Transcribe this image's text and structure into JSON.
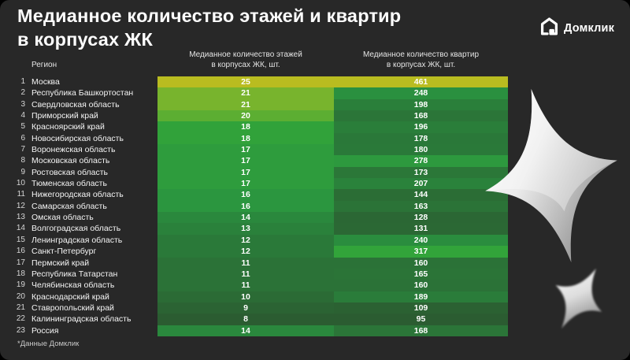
{
  "header": {
    "title_line1": "Медианное количество этажей и квартир",
    "title_line2": "в корпусах ЖК",
    "logo_text": "Домклик"
  },
  "table": {
    "region_header": "Регион",
    "col1_header_line1": "Медианное количество этажей",
    "col1_header_line2": "в корпусах ЖК, шт.",
    "col2_header_line1": "Медианное количество квартир",
    "col2_header_line2": "в корпусах ЖК, шт."
  },
  "footer": {
    "source_note": "*Данные Домклик"
  },
  "colors": {
    "background": "#282828",
    "cell_text": "#ffffff",
    "scale_stops": [
      [
        0,
        "#2b5c31"
      ],
      [
        0.45,
        "#2a9440"
      ],
      [
        0.62,
        "#33a539"
      ],
      [
        0.78,
        "#7fb62c"
      ],
      [
        1,
        "#b9bc20"
      ]
    ]
  },
  "chart_data": {
    "type": "heatmap",
    "title": "Медианное количество этажей и квартир в корпусах ЖК",
    "columns": [
      "Медианное количество этажей в корпусах ЖК, шт.",
      "Медианное количество квартир в корпусах ЖК, шт."
    ],
    "legend_position": "none",
    "grid": false,
    "floors_range": [
      8,
      25
    ],
    "apartments_range": [
      95,
      461
    ],
    "rows": [
      {
        "rank": 1,
        "region": "Москва",
        "floors": 25,
        "apartments": 461
      },
      {
        "rank": 2,
        "region": "Республика Башкортостан",
        "floors": 21,
        "apartments": 248
      },
      {
        "rank": 3,
        "region": "Свердловская область",
        "floors": 21,
        "apartments": 198
      },
      {
        "rank": 4,
        "region": "Приморский край",
        "floors": 20,
        "apartments": 168
      },
      {
        "rank": 5,
        "region": "Красноярский край",
        "floors": 18,
        "apartments": 196
      },
      {
        "rank": 6,
        "region": "Новосибирская область",
        "floors": 18,
        "apartments": 178
      },
      {
        "rank": 7,
        "region": "Воронежская область",
        "floors": 17,
        "apartments": 180
      },
      {
        "rank": 8,
        "region": "Московская область",
        "floors": 17,
        "apartments": 278
      },
      {
        "rank": 9,
        "region": "Ростовская область",
        "floors": 17,
        "apartments": 173
      },
      {
        "rank": 10,
        "region": "Тюменская область",
        "floors": 17,
        "apartments": 207
      },
      {
        "rank": 11,
        "region": "Нижегородская область",
        "floors": 16,
        "apartments": 144
      },
      {
        "rank": 12,
        "region": "Самарская область",
        "floors": 16,
        "apartments": 163
      },
      {
        "rank": 13,
        "region": "Омская область",
        "floors": 14,
        "apartments": 128
      },
      {
        "rank": 14,
        "region": "Волгоградская область",
        "floors": 13,
        "apartments": 131
      },
      {
        "rank": 15,
        "region": "Ленинградская область",
        "floors": 12,
        "apartments": 240
      },
      {
        "rank": 16,
        "region": "Санкт-Петербург",
        "floors": 12,
        "apartments": 317
      },
      {
        "rank": 17,
        "region": "Пермский край",
        "floors": 11,
        "apartments": 160
      },
      {
        "rank": 18,
        "region": "Республика Татарстан",
        "floors": 11,
        "apartments": 165
      },
      {
        "rank": 19,
        "region": "Челябинская область",
        "floors": 11,
        "apartments": 160
      },
      {
        "rank": 20,
        "region": "Краснодарский край",
        "floors": 10,
        "apartments": 189
      },
      {
        "rank": 21,
        "region": "Ставропольский край",
        "floors": 9,
        "apartments": 109
      },
      {
        "rank": 22,
        "region": "Калининградская область",
        "floors": 8,
        "apartments": 95
      },
      {
        "rank": 23,
        "region": "Россия",
        "floors": 14,
        "apartments": 168
      }
    ]
  }
}
